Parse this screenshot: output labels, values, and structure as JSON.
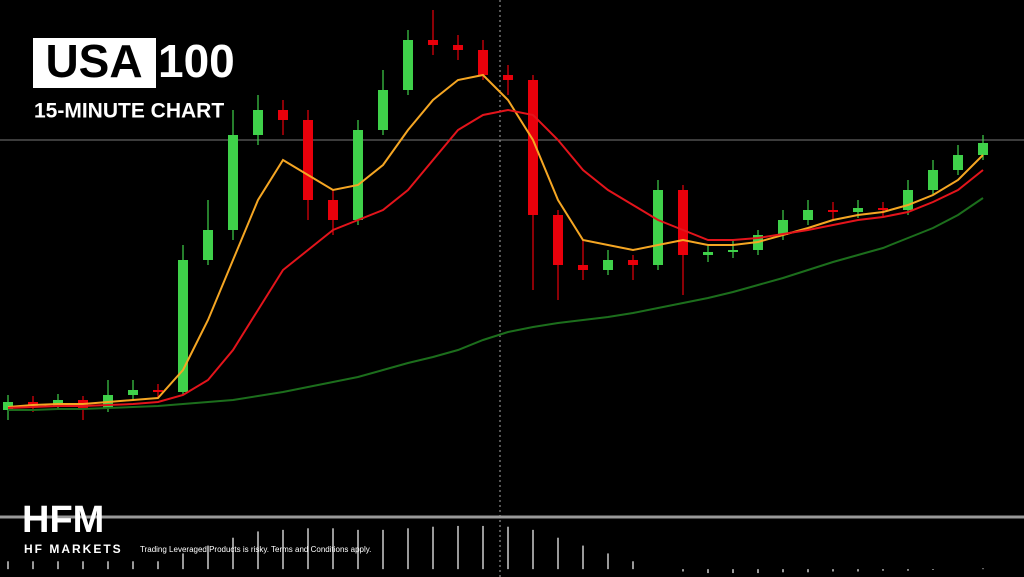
{
  "header": {
    "title_boxed": "USA",
    "title_rest": "100",
    "subtitle": "15-MINUTE CHART"
  },
  "footer": {
    "logo": "HFM",
    "brand": "HF MARKETS",
    "disclaimer": "Trading Leveraged Products is risky. Terms and Conditions apply."
  },
  "chart_data": {
    "type": "candlestick",
    "ylim": [
      0,
      520
    ],
    "up_color": "#3fd14a",
    "down_color": "#e8000b",
    "open": [
      110,
      118,
      114,
      120,
      112,
      125,
      130,
      128,
      260,
      290,
      385,
      410,
      400,
      320,
      300,
      390,
      430,
      480,
      475,
      470,
      445,
      440,
      305,
      255,
      250,
      260,
      255,
      330,
      265,
      268,
      270,
      285,
      300,
      310,
      308,
      312,
      310,
      330,
      350,
      365
    ],
    "close": [
      118,
      114,
      120,
      112,
      125,
      130,
      128,
      260,
      290,
      385,
      410,
      400,
      320,
      300,
      390,
      430,
      480,
      475,
      470,
      445,
      440,
      305,
      255,
      250,
      260,
      255,
      330,
      265,
      268,
      270,
      285,
      300,
      310,
      308,
      312,
      310,
      330,
      350,
      365,
      377
    ],
    "high": [
      125,
      124,
      126,
      124,
      140,
      140,
      136,
      275,
      320,
      410,
      425,
      420,
      410,
      330,
      400,
      450,
      490,
      510,
      485,
      480,
      455,
      445,
      310,
      280,
      270,
      265,
      340,
      335,
      275,
      280,
      290,
      310,
      320,
      318,
      320,
      318,
      340,
      360,
      375,
      385
    ],
    "low": [
      100,
      108,
      110,
      100,
      108,
      120,
      122,
      125,
      255,
      280,
      375,
      385,
      300,
      285,
      295,
      385,
      425,
      465,
      460,
      440,
      425,
      230,
      220,
      240,
      245,
      240,
      250,
      225,
      258,
      262,
      265,
      280,
      295,
      300,
      302,
      304,
      305,
      325,
      345,
      360
    ],
    "series": [
      {
        "color": "#f5a623",
        "values": [
          113,
          115,
          116,
          116,
          118,
          120,
          122,
          150,
          200,
          260,
          320,
          360,
          345,
          330,
          335,
          355,
          390,
          420,
          440,
          445,
          420,
          380,
          320,
          280,
          275,
          270,
          275,
          280,
          275,
          275,
          278,
          285,
          292,
          300,
          305,
          308,
          315,
          325,
          340,
          365
        ]
      },
      {
        "color": "#e3141b",
        "values": [
          112,
          113,
          114,
          114,
          115,
          116,
          118,
          125,
          140,
          170,
          210,
          250,
          270,
          290,
          300,
          310,
          330,
          360,
          390,
          405,
          410,
          405,
          380,
          350,
          330,
          315,
          300,
          290,
          280,
          280,
          282,
          286,
          290,
          295,
          300,
          303,
          308,
          318,
          330,
          350
        ]
      },
      {
        "color": "#1c6e1c",
        "values": [
          110,
          110,
          111,
          111,
          112,
          113,
          114,
          116,
          118,
          120,
          124,
          128,
          133,
          138,
          143,
          150,
          157,
          163,
          170,
          180,
          188,
          193,
          197,
          200,
          203,
          207,
          212,
          217,
          222,
          228,
          235,
          242,
          250,
          258,
          265,
          272,
          282,
          292,
          305,
          322
        ]
      }
    ],
    "indicator": {
      "ylim": [
        -10,
        60
      ],
      "color": "#cccccc",
      "values": [
        10,
        10,
        10,
        10,
        10,
        10,
        10,
        20,
        30,
        40,
        48,
        50,
        52,
        52,
        50,
        50,
        52,
        54,
        55,
        55,
        54,
        50,
        40,
        30,
        20,
        10,
        0,
        -3,
        -5,
        -5,
        -5,
        -4,
        -4,
        -3,
        -3,
        -2,
        -2,
        -1,
        0,
        1
      ]
    }
  }
}
